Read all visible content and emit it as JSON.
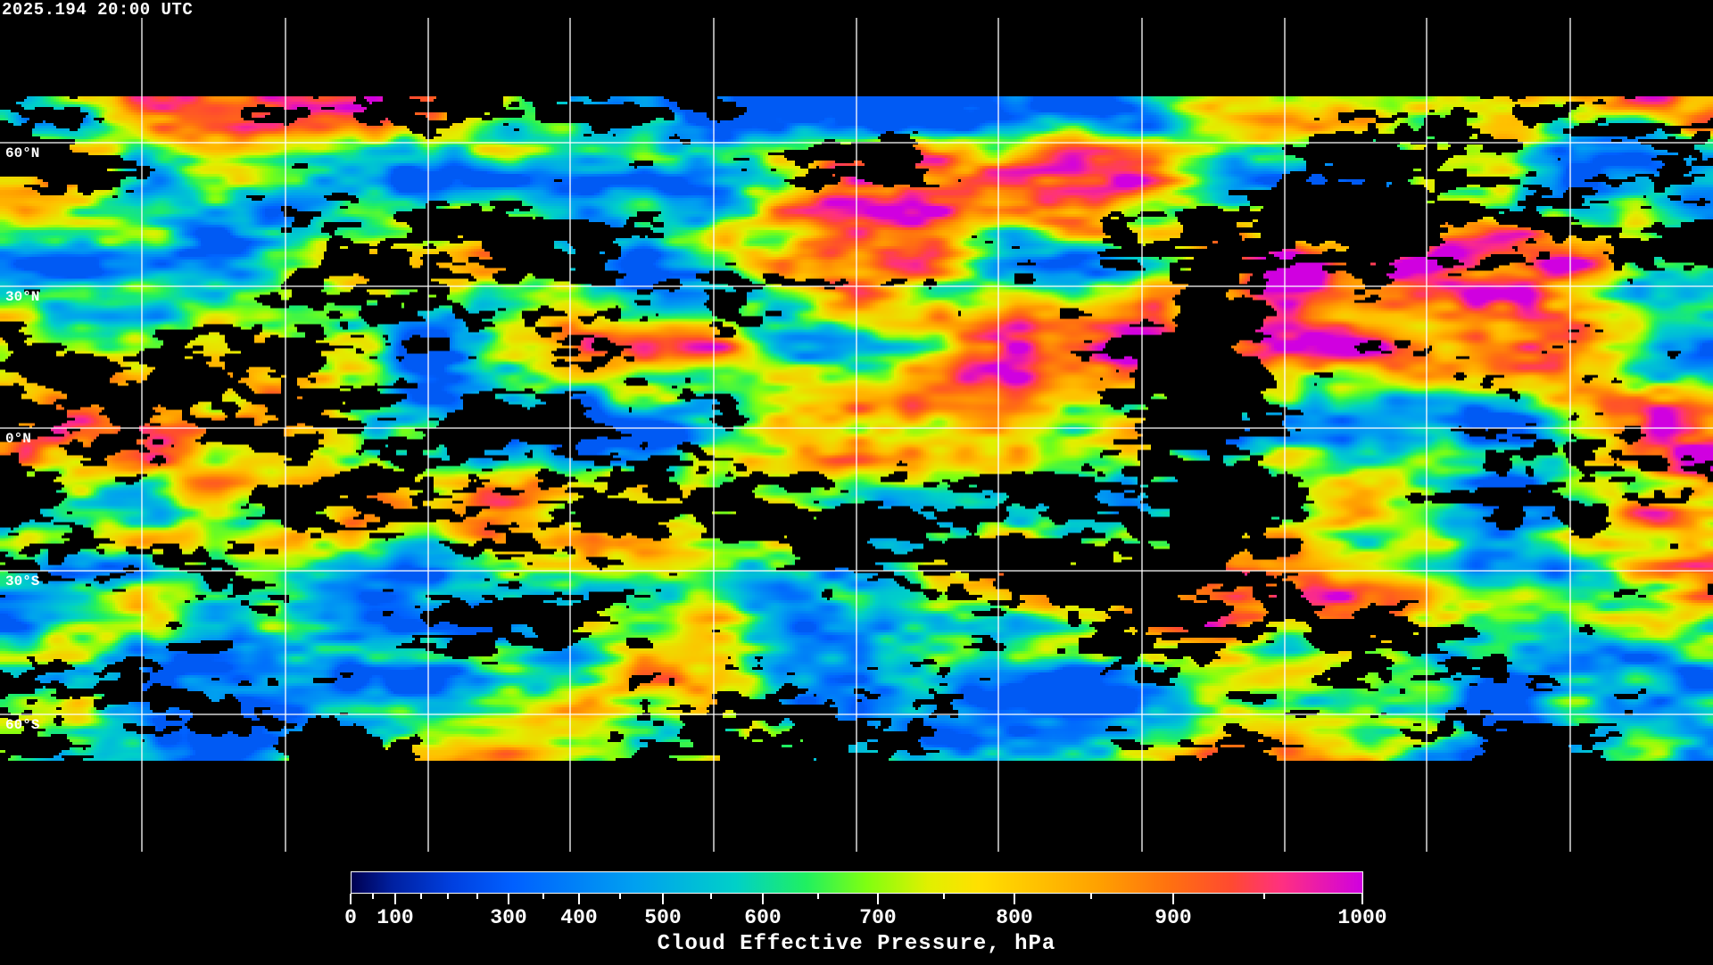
{
  "timestamp": "2025.194 20:00 UTC",
  "map": {
    "product": "Cloud Effective Pressure",
    "projection": "equirectangular",
    "gridlines": "30-degree lat/lon",
    "coastlines": "white",
    "lat_labels": [
      "60°N",
      "30°N",
      "0°N",
      "30°S",
      "60°S"
    ]
  },
  "colorbar": {
    "title": "Cloud Effective Pressure, hPa",
    "min": 0,
    "max": 1000,
    "tick_labels": [
      "0",
      "100",
      "300",
      "400",
      "500",
      "600",
      "700",
      "800",
      "900",
      "1000"
    ],
    "colors": [
      "#000050",
      "#0060ff",
      "#00a0f0",
      "#20f060",
      "#ffe000",
      "#ffa000",
      "#ff4a30",
      "#d000e0"
    ]
  }
}
